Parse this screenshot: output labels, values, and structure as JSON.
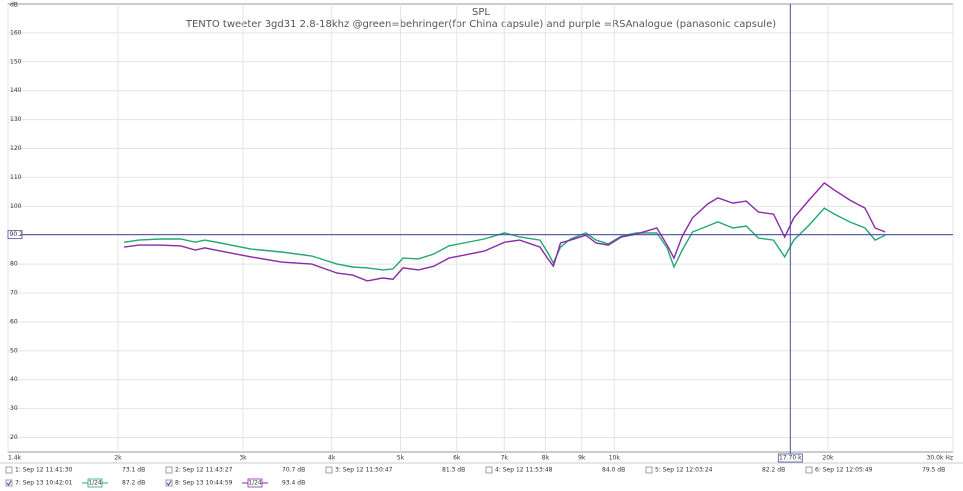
{
  "chart_data": {
    "type": "line",
    "title": "SPL",
    "subtitle": "TENTO tweeter 3gd31 2.8-18khz @green=behringer(for China capsule) and purple =RSAnalogue (panasonic capsule)",
    "y_label": "dB",
    "log_x": true,
    "grid": true,
    "xlim": [
      1400,
      30000
    ],
    "ylim": [
      15,
      170
    ],
    "yticks": [
      20,
      30,
      40,
      50,
      60,
      70,
      80,
      90,
      100,
      110,
      120,
      130,
      140,
      150,
      160
    ],
    "xticks": [
      {
        "value": 1400,
        "label": "1.4k"
      },
      {
        "value": 2000,
        "label": "2k"
      },
      {
        "value": 3000,
        "label": "3k"
      },
      {
        "value": 4000,
        "label": "4k"
      },
      {
        "value": 5000,
        "label": "5k"
      },
      {
        "value": 6000,
        "label": "6k"
      },
      {
        "value": 7000,
        "label": "7k"
      },
      {
        "value": 8000,
        "label": "8k"
      },
      {
        "value": 9000,
        "label": "9k"
      },
      {
        "value": 10000,
        "label": "10k"
      },
      {
        "value": 20000,
        "label": "20k"
      },
      {
        "value": 30000,
        "label": "30.0k Hz"
      }
    ],
    "cursor": {
      "y": 90.2,
      "x": {
        "value": 17700,
        "label": "17.70 k"
      },
      "color": "#4a4aa0"
    },
    "x": [
      2040,
      2140,
      2290,
      2450,
      2570,
      2650,
      2790,
      3080,
      3400,
      3750,
      4070,
      4280,
      4490,
      4720,
      4880,
      5040,
      5300,
      5570,
      5850,
      6140,
      6560,
      7010,
      7360,
      7860,
      8050,
      8210,
      8400,
      8680,
      9120,
      9430,
      9810,
      10230,
      10750,
      11480,
      11870,
      12140,
      12470,
      12890,
      13540,
      13990,
      14700,
      15340,
      15960,
      16760,
      17380,
      17900,
      18810,
      19760,
      20420,
      21460,
      22550,
      23300,
      24080
    ],
    "series": [
      {
        "name": "7: Sep 13 10:42:01",
        "reading": "87.2 dB",
        "smoothing": "1/24",
        "checked": true,
        "color": "#22a874",
        "values": [
          87.6,
          88.3,
          88.7,
          88.7,
          87.6,
          88.3,
          87.3,
          85.2,
          84.2,
          82.8,
          80.0,
          79.0,
          78.7,
          78.0,
          78.3,
          82.1,
          81.8,
          83.5,
          86.3,
          87.3,
          88.7,
          90.8,
          89.4,
          88.3,
          84.2,
          80.4,
          85.9,
          88.7,
          90.8,
          88.3,
          87.0,
          89.7,
          90.8,
          90.8,
          85.6,
          79.0,
          84.9,
          91.1,
          93.2,
          94.6,
          92.5,
          93.2,
          89.0,
          88.3,
          82.5,
          88.3,
          93.5,
          99.4,
          97.3,
          94.6,
          92.5,
          88.3,
          90.0
        ]
      },
      {
        "name": "8: Sep 13 10:44:59",
        "reading": "93.4 dB",
        "smoothing": "1/24",
        "checked": true,
        "color": "#8a2aa8",
        "values": [
          85.9,
          86.6,
          86.6,
          86.3,
          84.9,
          85.6,
          84.5,
          82.5,
          80.7,
          80.0,
          76.9,
          76.2,
          74.2,
          75.2,
          74.8,
          78.7,
          78.0,
          79.3,
          82.1,
          83.1,
          84.5,
          87.6,
          88.3,
          85.9,
          82.1,
          79.3,
          87.3,
          88.3,
          90.0,
          87.3,
          86.6,
          89.4,
          90.4,
          92.5,
          86.6,
          82.1,
          89.7,
          96.0,
          100.8,
          102.9,
          101.1,
          101.8,
          98.0,
          97.3,
          89.4,
          96.0,
          102.2,
          108.1,
          105.6,
          102.2,
          99.4,
          92.5,
          91.1
        ]
      }
    ],
    "other_measurements": [
      {
        "name": "1: Sep 12 11:41:30",
        "reading": "73.1 dB",
        "checked": false,
        "color": "#c02020"
      },
      {
        "name": "2: Sep 12 11:43:27",
        "reading": "70.7 dB",
        "checked": false,
        "color": "#2a8a2a"
      },
      {
        "name": "3: Sep 12 11:50:47",
        "reading": "81.3 dB",
        "checked": false,
        "color": "#4848c0"
      },
      {
        "name": "4: Sep 12 11:53:48",
        "reading": "84.0 dB",
        "checked": false,
        "color": "#c030c0"
      },
      {
        "name": "5: Sep 12 12:03:24",
        "reading": "82.2 dB",
        "checked": false,
        "color": "#20809a"
      },
      {
        "name": "6: Sep 12 12:05:49",
        "reading": "79.5 dB",
        "checked": false,
        "color": "#b08818"
      }
    ]
  }
}
